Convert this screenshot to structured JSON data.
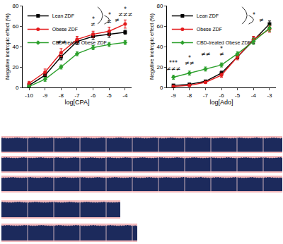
{
  "chart_data": [
    {
      "type": "line",
      "xlabel": "log[CPA]",
      "ylabel": "Negative inotropic effect (%)",
      "x": [
        -10,
        -9,
        -8,
        -7,
        -6,
        -5,
        -4
      ],
      "xlim": [
        -10.4,
        -3.6
      ],
      "xticks": [
        -10,
        -9,
        -8,
        -7,
        -6,
        -5,
        -4
      ],
      "ylim": [
        0,
        80
      ],
      "yticks": [
        0,
        20,
        40,
        60,
        80
      ],
      "grid": false,
      "legend": "upper left",
      "series": [
        {
          "name": "Lean ZDF",
          "color": "#000000",
          "marker": "square",
          "values": [
            2,
            12,
            30,
            45,
            50,
            52,
            54
          ],
          "errors": [
            1,
            2,
            3,
            3,
            3,
            3,
            2
          ]
        },
        {
          "name": "Obese ZDF",
          "color": "#e41a1c",
          "marker": "circle",
          "values": [
            4,
            15,
            34,
            47,
            52,
            55,
            62
          ],
          "errors": [
            2,
            3,
            4,
            3,
            3,
            4,
            4
          ]
        },
        {
          "name": "CBD-treated Obese ZDF",
          "color": "#2ca02c",
          "marker": "diamond",
          "values": [
            1,
            8,
            20,
            33,
            39,
            42,
            44
          ],
          "errors": [
            1,
            2,
            2,
            2,
            2,
            2,
            2
          ]
        }
      ],
      "comparisons": [
        {
          "from": "Lean ZDF",
          "to": "CBD-treated Obese ZDF",
          "label": "*"
        },
        {
          "from": "Obese ZDF",
          "to": "CBD-treated Obese ZDF",
          "label": "≠"
        }
      ],
      "annotations": [
        {
          "x": -8,
          "y": 40,
          "text": "≠≠"
        },
        {
          "x": -6,
          "y": 62,
          "text": "*"
        },
        {
          "x": -6,
          "y": 57,
          "text": "≠"
        },
        {
          "x": -5,
          "y": 60,
          "text": "≠"
        },
        {
          "x": -4,
          "y": 72,
          "text": "*"
        },
        {
          "x": -4,
          "y": 67,
          "text": "≠≠≠"
        }
      ]
    },
    {
      "type": "line",
      "xlabel": "log[Ado]",
      "ylabel": "Negative inotropic effect (%)",
      "x": [
        -9,
        -8,
        -7,
        -6,
        -5,
        -4,
        -3
      ],
      "xlim": [
        -9.4,
        -2.6
      ],
      "xticks": [
        -9,
        -8,
        -7,
        -6,
        -5,
        -4,
        -3
      ],
      "ylim": [
        0,
        80
      ],
      "yticks": [
        0,
        20,
        40,
        60,
        80
      ],
      "grid": false,
      "legend": "upper left",
      "series": [
        {
          "name": "Lean ZDF",
          "color": "#000000",
          "marker": "square",
          "values": [
            2,
            3,
            6,
            14,
            30,
            46,
            62
          ],
          "errors": [
            1,
            1,
            1,
            2,
            2,
            3,
            3
          ]
        },
        {
          "name": "Obese ZDF",
          "color": "#e41a1c",
          "marker": "circle",
          "values": [
            1,
            2,
            5,
            12,
            30,
            47,
            57
          ],
          "errors": [
            1,
            1,
            1,
            2,
            3,
            3,
            3
          ]
        },
        {
          "name": "CBD-treated Obese ZDF",
          "color": "#2ca02c",
          "marker": "diamond",
          "values": [
            10,
            14,
            18,
            22,
            33,
            45,
            58
          ],
          "errors": [
            2,
            2,
            2,
            2,
            2,
            3,
            3
          ]
        }
      ],
      "comparisons": [
        {
          "from": "Lean ZDF",
          "to": "CBD-treated Obese ZDF",
          "label": "*"
        },
        {
          "from": "Obese ZDF",
          "to": "CBD-treated Obese ZDF",
          "label": "≠"
        }
      ],
      "annotations": [
        {
          "x": -9,
          "y": 19,
          "text": "***"
        },
        {
          "x": -9,
          "y": 14,
          "text": "≠≠≠"
        },
        {
          "x": -8,
          "y": 24,
          "text": "*"
        },
        {
          "x": -8,
          "y": 19,
          "text": "≠≠"
        },
        {
          "x": -7,
          "y": 28,
          "text": "≠≠"
        },
        {
          "x": -6,
          "y": 33,
          "text": "*"
        },
        {
          "x": -6,
          "y": 28,
          "text": "≠"
        }
      ]
    }
  ]
}
